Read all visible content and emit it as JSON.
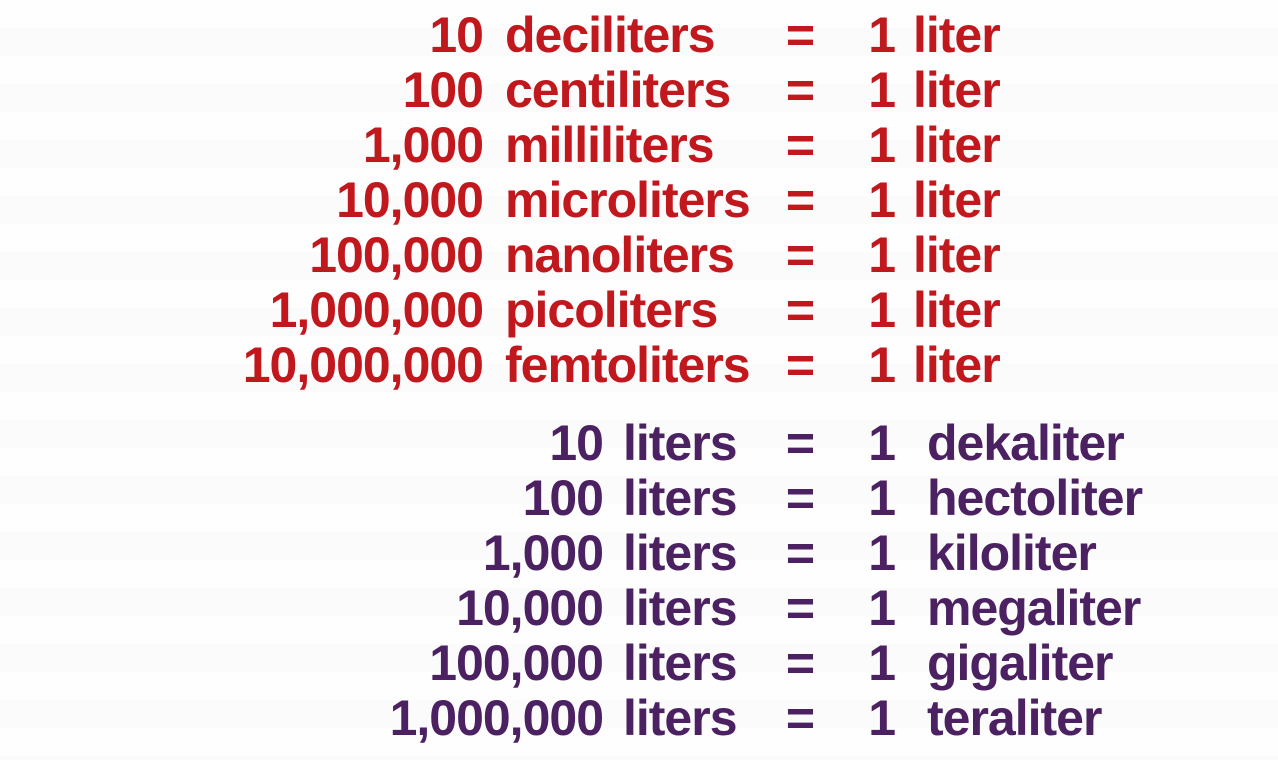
{
  "page": {
    "background": "#ffffff"
  },
  "colors": {
    "submultiples_text": "#c1181e",
    "multiples_text": "#4c2162"
  },
  "sections": [
    {
      "id": "liter-submultiples",
      "text_color": "#c1181e",
      "rows": [
        {
          "amount": "10",
          "unit": "deciliters",
          "equals": "=",
          "result_amount": "1",
          "result_unit": "liter"
        },
        {
          "amount": "100",
          "unit": "centiliters",
          "equals": "=",
          "result_amount": "1",
          "result_unit": "liter"
        },
        {
          "amount": "1,000",
          "unit": "milliliters",
          "equals": "=",
          "result_amount": "1",
          "result_unit": "liter"
        },
        {
          "amount": "10,000",
          "unit": "microliters",
          "equals": "=",
          "result_amount": "1",
          "result_unit": "liter"
        },
        {
          "amount": "100,000",
          "unit": "nanoliters",
          "equals": "=",
          "result_amount": "1",
          "result_unit": "liter"
        },
        {
          "amount": "1,000,000",
          "unit": "picoliters",
          "equals": "=",
          "result_amount": "1",
          "result_unit": "liter"
        },
        {
          "amount": "10,000,000",
          "unit": "femtoliters",
          "equals": "=",
          "result_amount": "1",
          "result_unit": "liter"
        }
      ]
    },
    {
      "id": "liter-multiples",
      "text_color": "#4c2162",
      "rows": [
        {
          "amount": "10",
          "unit": "liters",
          "equals": "=",
          "result_amount": "1",
          "result_unit": "dekaliter"
        },
        {
          "amount": "100",
          "unit": "liters",
          "equals": "=",
          "result_amount": "1",
          "result_unit": "hectoliter"
        },
        {
          "amount": "1,000",
          "unit": "liters",
          "equals": "=",
          "result_amount": "1",
          "result_unit": "kiloliter"
        },
        {
          "amount": "10,000",
          "unit": "liters",
          "equals": "=",
          "result_amount": "1",
          "result_unit": "megaliter"
        },
        {
          "amount": "100,000",
          "unit": "liters",
          "equals": "=",
          "result_amount": "1",
          "result_unit": "gigaliter"
        },
        {
          "amount": "1,000,000",
          "unit": "liters",
          "equals": "=",
          "result_amount": "1",
          "result_unit": "teraliter"
        }
      ]
    }
  ]
}
